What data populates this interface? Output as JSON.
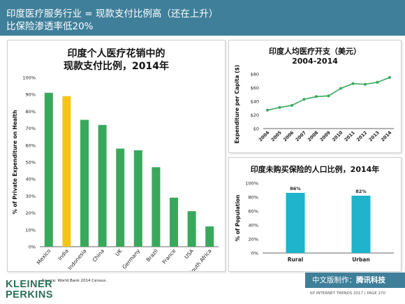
{
  "header": {
    "title_line1": "印度医疗服务行业 = 现款支付比例高（还在上升）",
    "title_line2": "比保险渗透率低20%"
  },
  "colors": {
    "header_bg": "#3f7f9a",
    "bar_green": "#3aa85c",
    "bar_highlight": "#f5c419",
    "line_green": "#3aa85c",
    "bar_teal": "#1fb3cc"
  },
  "chart_data": [
    {
      "type": "bar",
      "title_line1": "印度个人医疗花销中的",
      "title_line2": "现款支付比例，2014年",
      "ylabel": "% of Private Expenditure on Health",
      "ylim": [
        0,
        100
      ],
      "yticks": [
        "0%",
        "10%",
        "20%",
        "30%",
        "40%",
        "50%",
        "60%",
        "70%",
        "80%",
        "90%",
        "100%"
      ],
      "categories": [
        "Mexico",
        "India",
        "Indonesia",
        "China",
        "UK",
        "Germany",
        "Brazil",
        "France",
        "USA",
        "South Africa"
      ],
      "values": [
        91,
        89,
        75,
        72,
        58,
        57,
        47,
        29,
        21,
        12
      ],
      "highlight": "India",
      "source": "Source: World Bank 2014 Census."
    },
    {
      "type": "line",
      "title_line1": "印度人均医疗开支（美元）",
      "title_line2": "2004-2014",
      "ylabel": "Expenditure per Capita ($)",
      "ylim": [
        0,
        80
      ],
      "yticks": [
        "$0",
        "$20",
        "$40",
        "$60",
        "$80"
      ],
      "x": [
        "2004",
        "2005",
        "2006",
        "2007",
        "2008",
        "2009",
        "2010",
        "2011",
        "2012",
        "2013",
        "2014"
      ],
      "values": [
        27,
        31,
        34,
        43,
        47,
        48,
        59,
        66,
        65,
        68,
        75
      ]
    },
    {
      "type": "bar",
      "title": "印度未购买保险的人口比例，2014年",
      "ylabel": "% of Population",
      "ylim": [
        0,
        100
      ],
      "yticks": [
        "0%",
        "20%",
        "40%",
        "60%",
        "80%",
        "100%"
      ],
      "categories": [
        "Rural",
        "Urban"
      ],
      "values": [
        86,
        82
      ],
      "data_labels": [
        "86%",
        "82%"
      ]
    }
  ],
  "footer": {
    "logo_line1": "KLEINER",
    "logo_line2": "PERKINS",
    "badge_prefix": "中文版制作：",
    "badge_brand": "腾讯科技",
    "report": "KP INTERNET TRENDS 2017  |  PAGE 270"
  }
}
